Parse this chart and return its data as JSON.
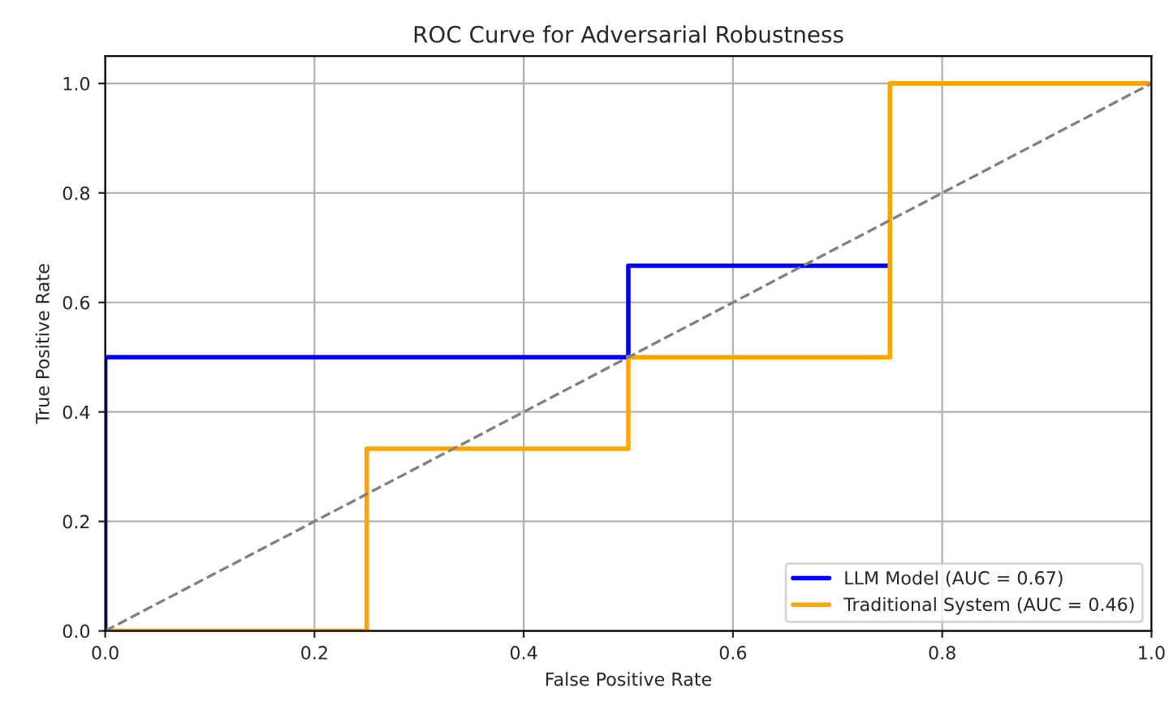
{
  "chart_data": {
    "type": "line",
    "title": "ROC Curve for Adversarial Robustness",
    "xlabel": "False Positive Rate",
    "ylabel": "True Positive Rate",
    "series": [
      {
        "name": "LLM Model (AUC = 0.67)",
        "color": "#0000ff",
        "x": [
          0,
          0,
          0.5,
          0.5,
          0.75
        ],
        "values": [
          0,
          0.5,
          0.5,
          0.667,
          0.667
        ]
      },
      {
        "name": "Traditional System (AUC = 0.46)",
        "color": "#ffa500",
        "x": [
          0,
          0.25,
          0.25,
          0.5,
          0.5,
          0.75,
          0.75,
          1
        ],
        "values": [
          0,
          0,
          0.333,
          0.333,
          0.5,
          0.5,
          1,
          1
        ]
      },
      {
        "color": "#808080",
        "line_style": "dashed",
        "x": [
          0,
          1
        ],
        "values": [
          0,
          1
        ]
      }
    ],
    "xlim": [
      0,
      1
    ],
    "ylim": [
      0,
      1.05
    ],
    "xticks": [
      {
        "value": 0,
        "label": "0.0"
      },
      0.2,
      0.4,
      0.6,
      0.8,
      {
        "value": 1,
        "label": "1.0"
      }
    ],
    "yticks": [
      {
        "value": 0,
        "label": "0.0"
      },
      0.2,
      0.4,
      0.6,
      0.8,
      {
        "value": 1,
        "label": "1.0"
      }
    ],
    "grid": true,
    "legend": "bottom right"
  }
}
